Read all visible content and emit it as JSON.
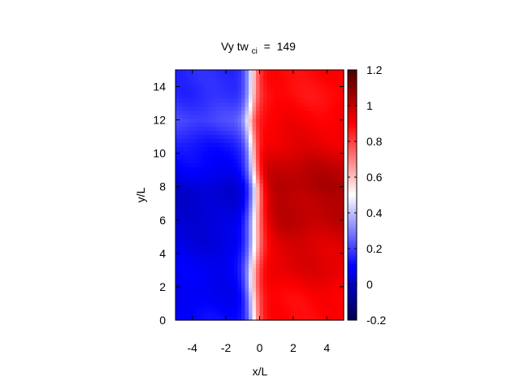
{
  "chart_data": {
    "type": "heatmap",
    "title": {
      "main": "Vy tw",
      "subscript": "ci",
      "value": " =  149"
    },
    "xlabel": "x/L",
    "ylabel": "y/L",
    "xlim": [
      -5,
      5
    ],
    "ylim": [
      0,
      15
    ],
    "xticks": [
      -4,
      -2,
      0,
      2,
      4
    ],
    "yticks": [
      0,
      2,
      4,
      6,
      8,
      10,
      12,
      14
    ],
    "colorbar": {
      "range": [
        -0.2,
        1.2
      ],
      "ticks": [
        -0.2,
        0,
        0.2,
        0.4,
        0.6,
        0.8,
        1,
        1.2
      ],
      "tick_labels": [
        "-0.2",
        "0",
        "0.2",
        "0.4",
        "0.6",
        "0.8",
        "1",
        "1.2"
      ],
      "stops": [
        {
          "value": -0.2,
          "color": "#00004d"
        },
        {
          "value": 0.1,
          "color": "#0000ff"
        },
        {
          "value": 0.5,
          "color": "#ffffff"
        },
        {
          "value": 0.9,
          "color": "#ff0000"
        },
        {
          "value": 1.2,
          "color": "#4d0000"
        }
      ]
    },
    "field": {
      "y": [
        0,
        2,
        4,
        6,
        8,
        10,
        12,
        15
      ],
      "boundary_x": [
        -0.35,
        -0.45,
        -0.35,
        -0.3,
        -0.2,
        -0.4,
        -0.6,
        -0.4
      ],
      "left_value": [
        0.1,
        0.08,
        0.07,
        0.02,
        0.03,
        0.12,
        0.2,
        0.15
      ],
      "right_value": [
        0.88,
        0.92,
        0.96,
        1.0,
        1.04,
        0.97,
        0.9,
        0.88
      ],
      "transition_width": [
        1.1,
        1.2,
        1.3,
        1.5,
        1.3,
        1.0,
        1.0,
        1.1
      ]
    }
  }
}
